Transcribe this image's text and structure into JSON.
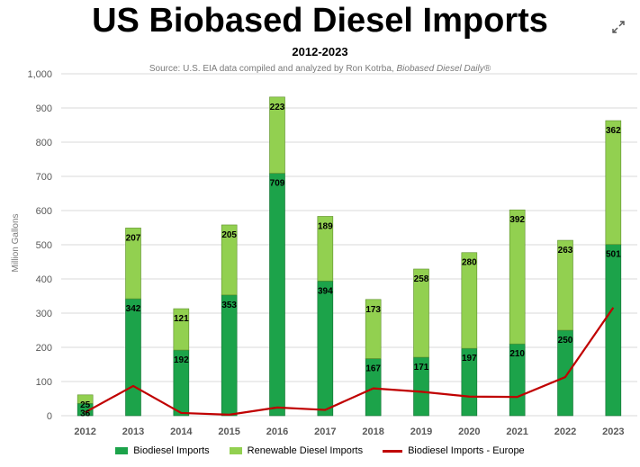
{
  "header": {
    "title": "US Biobased Diesel Imports",
    "subtitle": "2012-2023",
    "source_prefix": "Source: U.S. EIA data compiled and analyzed by Ron Kotrba, ",
    "source_italic": "Biobased Diesel Daily®"
  },
  "icons": {
    "expand": "expand-arrows-icon"
  },
  "colors": {
    "biodiesel": "#1ca34a",
    "renewable": "#92d050",
    "europe": "#c00000",
    "grid": "#d9d9d9",
    "axis_text": "#595959"
  },
  "chart_data": {
    "type": "bar",
    "stacked": true,
    "categories": [
      "2012",
      "2013",
      "2014",
      "2015",
      "2016",
      "2017",
      "2018",
      "2019",
      "2020",
      "2021",
      "2022",
      "2023"
    ],
    "series": [
      {
        "name": "Biodiesel Imports",
        "type": "bar",
        "values": [
          36,
          342,
          192,
          353,
          709,
          394,
          167,
          171,
          197,
          210,
          250,
          501
        ]
      },
      {
        "name": "Renewable Diesel Imports",
        "type": "bar",
        "values": [
          25,
          207,
          121,
          205,
          223,
          189,
          173,
          258,
          280,
          392,
          263,
          362
        ]
      },
      {
        "name": "Biodiesel Imports - Europe",
        "type": "line",
        "values": [
          10,
          87,
          8,
          3,
          24,
          17,
          80,
          70,
          56,
          55,
          113,
          316
        ]
      }
    ],
    "ylabel": "Million Gallons",
    "xlabel": "",
    "ylim": [
      0,
      1000
    ],
    "yticks": [
      "0",
      "100",
      "200",
      "300",
      "400",
      "500",
      "600",
      "700",
      "800",
      "900",
      "1,000"
    ],
    "grid": true,
    "legend": "bottom"
  }
}
